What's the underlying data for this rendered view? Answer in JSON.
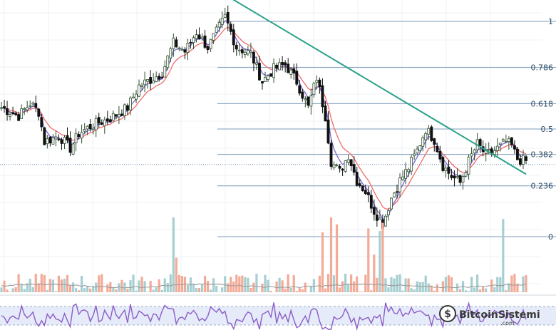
{
  "chart_data": {
    "type": "candlestick",
    "ylim": [
      0.18,
      1.04
    ],
    "price_axis": "log",
    "x": {
      "first_bar": 0,
      "last_bar": 183
    },
    "fib_levels": [
      {
        "value": 1.0,
        "label": "1"
      },
      {
        "value": 0.786,
        "label": "0.786"
      },
      {
        "value": 0.618,
        "label": "0.618"
      },
      {
        "value": 0.5,
        "label": "0.5"
      },
      {
        "value": 0.382,
        "label": "0.382"
      },
      {
        "value": 0.236,
        "label": "0.236"
      },
      {
        "value": 0.0,
        "label": "0"
      }
    ],
    "current_price_line": 0.375,
    "candle_keypoints": [
      [
        0,
        0.6
      ],
      [
        6,
        0.56
      ],
      [
        10,
        0.62
      ],
      [
        13,
        0.58
      ],
      [
        15,
        0.44
      ],
      [
        20,
        0.47
      ],
      [
        24,
        0.41
      ],
      [
        27,
        0.48
      ],
      [
        32,
        0.52
      ],
      [
        38,
        0.55
      ],
      [
        44,
        0.6
      ],
      [
        48,
        0.7
      ],
      [
        52,
        0.73
      ],
      [
        56,
        0.76
      ],
      [
        60,
        0.9
      ],
      [
        64,
        0.86
      ],
      [
        68,
        0.95
      ],
      [
        72,
        0.88
      ],
      [
        78,
        1.02
      ],
      [
        82,
        0.88
      ],
      [
        87,
        0.85
      ],
      [
        91,
        0.72
      ],
      [
        95,
        0.78
      ],
      [
        99,
        0.8
      ],
      [
        103,
        0.72
      ],
      [
        107,
        0.6
      ],
      [
        110,
        0.74
      ],
      [
        113,
        0.56
      ],
      [
        115,
        0.35
      ],
      [
        118,
        0.3
      ],
      [
        121,
        0.38
      ],
      [
        124,
        0.26
      ],
      [
        127,
        0.21
      ],
      [
        130,
        0.12
      ],
      [
        133,
        0.06
      ],
      [
        136,
        0.18
      ],
      [
        139,
        0.26
      ],
      [
        142,
        0.32
      ],
      [
        145,
        0.4
      ],
      [
        148,
        0.5
      ],
      [
        151,
        0.45
      ],
      [
        154,
        0.33
      ],
      [
        157,
        0.28
      ],
      [
        160,
        0.25
      ],
      [
        163,
        0.35
      ],
      [
        166,
        0.43
      ],
      [
        169,
        0.38
      ],
      [
        172,
        0.4
      ],
      [
        176,
        0.44
      ],
      [
        178,
        0.42
      ],
      [
        180,
        0.36
      ],
      [
        183,
        0.35
      ]
    ],
    "trendline": [
      [
        70,
        1.12
      ],
      [
        183,
        0.29
      ]
    ],
    "moving_averages": [
      {
        "color": "#f06b6b",
        "period": 9
      },
      {
        "color": "#7b63d6",
        "period": 4
      }
    ],
    "colors": {
      "bull": "#2f4f2f",
      "bear": "#111111",
      "bull_fill": "#ffffff",
      "vol_up": "#a7cfd1",
      "vol_down": "#f3ab98",
      "trendline": "#2aa189",
      "fib": "#7b9bb8",
      "rsi": "#8c5cc7",
      "rsi_band": "#e5ebf8"
    }
  },
  "watermark": {
    "brand": "BitcoinSistemi",
    "sub": ".com"
  }
}
